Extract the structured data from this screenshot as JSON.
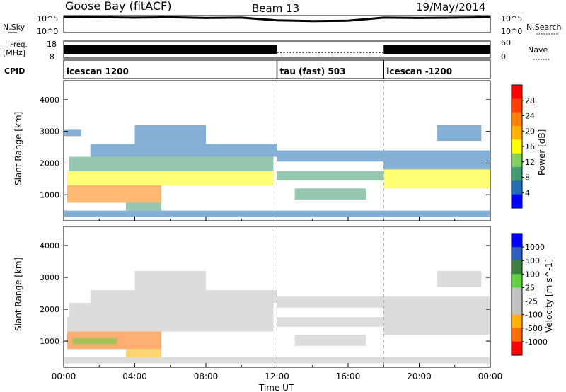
{
  "header": {
    "station": "Goose Bay (fitACF)",
    "beam": "Beam 13",
    "date": "19/May/2014"
  },
  "colors": {
    "axis": "#000000",
    "scatter_low": "#808080",
    "power_scale": [
      "#0000ff",
      "#1f6fb4",
      "#3f9a6e",
      "#7fcf5f",
      "#ffff00",
      "#ffb000",
      "#ff7f00",
      "#ff3f00",
      "#ff0000"
    ],
    "velocity_scale": [
      "#ff0000",
      "#ff6a00",
      "#ffb000",
      "#bfbfbf",
      "#bfbfbf",
      "#5fd03f",
      "#3f7f3f",
      "#2f5fbf",
      "#0000ff"
    ]
  },
  "chart_data": [
    {
      "type": "line",
      "panel": "noise",
      "left_labels": [
        "N.Sky"
      ],
      "right_labels": [
        "N.Search"
      ],
      "left_ticks": [
        "10^5",
        "10^0"
      ],
      "right_ticks": [
        "10^5",
        "10^0"
      ],
      "x": [
        "00:00",
        "02:00",
        "04:00",
        "06:00",
        "08:00",
        "10:00",
        "12:00",
        "14:00",
        "16:00",
        "18:00",
        "20:00",
        "22:00",
        "24:00"
      ],
      "series": [
        {
          "values": [
            4.6,
            4.5,
            4.4,
            4.5,
            4.3,
            4.4,
            3.6,
            3.4,
            3.5,
            4.4,
            4.3,
            4.4,
            4.5
          ]
        }
      ]
    },
    {
      "type": "bar",
      "panel": "frequency",
      "left_labels": [
        "Freq.",
        "[MHz]"
      ],
      "right_labels": [
        "Nave"
      ],
      "left_ticks": [
        "18",
        "8"
      ],
      "right_ticks": [
        "60",
        "0"
      ],
      "segments": [
        {
          "start": "00:00",
          "end": "12:00",
          "state": "filled"
        },
        {
          "start": "12:00",
          "end": "18:00",
          "state": "dotted"
        },
        {
          "start": "18:00",
          "end": "24:00",
          "state": "filled"
        }
      ]
    },
    {
      "type": "table",
      "panel": "cpid",
      "label": "CPID",
      "modes": [
        {
          "start": "00:00",
          "name": "icescan 1200"
        },
        {
          "start": "12:00",
          "name": "tau (fast) 503"
        },
        {
          "start": "18:00",
          "name": "icescan -1200"
        }
      ]
    },
    {
      "type": "heatmap",
      "panel": "power",
      "ylabel": "Slant Range [km]",
      "ylim": [
        180,
        4600
      ],
      "yticks": [
        1000,
        2000,
        3000,
        4000
      ],
      "colorbar_label": "Power [dB]",
      "colorbar_ticks": [
        "28",
        "24",
        "20",
        "16",
        "12",
        "8",
        "4"
      ],
      "bands": [
        {
          "t0": 0.2,
          "t1": 11.8,
          "r0": 1300,
          "r1": 1750,
          "level": 4
        },
        {
          "t0": 0.2,
          "t1": 5.5,
          "r0": 750,
          "r1": 1300,
          "level": 6
        },
        {
          "t0": 0.3,
          "t1": 11.8,
          "r0": 1750,
          "r1": 2200,
          "level": 2
        },
        {
          "t0": 1.5,
          "t1": 12,
          "r0": 2200,
          "r1": 2600,
          "level": 1
        },
        {
          "t0": 4,
          "t1": 8,
          "r0": 2600,
          "r1": 3200,
          "level": 1
        },
        {
          "t0": 0,
          "t1": 1,
          "r0": 2850,
          "r1": 3050,
          "level": 1
        },
        {
          "t0": 3.5,
          "t1": 5.5,
          "r0": 500,
          "r1": 750,
          "level": 2
        },
        {
          "t0": 12,
          "t1": 18,
          "r0": 2050,
          "r1": 2400,
          "level": 1
        },
        {
          "t0": 12,
          "t1": 18,
          "r0": 1450,
          "r1": 1750,
          "level": 2
        },
        {
          "t0": 13,
          "t1": 17,
          "r0": 850,
          "r1": 1200,
          "level": 2
        },
        {
          "t0": 18,
          "t1": 24,
          "r0": 1200,
          "r1": 1800,
          "level": 4
        },
        {
          "t0": 18,
          "t1": 24,
          "r0": 1800,
          "r1": 2400,
          "level": 1
        },
        {
          "t0": 21,
          "t1": 23.5,
          "r0": 2700,
          "r1": 3200,
          "level": 1
        },
        {
          "t0": 0,
          "t1": 24,
          "r0": 300,
          "r1": 500,
          "level": 1
        }
      ]
    },
    {
      "type": "heatmap",
      "panel": "velocity",
      "ylabel": "Slant Range [km]",
      "ylim": [
        180,
        4600
      ],
      "yticks": [
        1000,
        2000,
        3000,
        4000
      ],
      "xlabel": "Time UT",
      "xticks": [
        "00:00",
        "04:00",
        "08:00",
        "12:00",
        "16:00",
        "20:00",
        "00:00"
      ],
      "colorbar_label": "Velocity [m s^-1]",
      "colorbar_ticks": [
        "1000",
        "500",
        "100",
        "25",
        "-25",
        "-100",
        "-500",
        "-1000"
      ],
      "bands": [
        {
          "t0": 0.2,
          "t1": 11.8,
          "r0": 1300,
          "r1": 1750,
          "level": 4
        },
        {
          "t0": 0.2,
          "t1": 5.5,
          "r0": 750,
          "r1": 1300,
          "level": 1
        },
        {
          "t0": 0.3,
          "t1": 11.8,
          "r0": 1750,
          "r1": 2200,
          "level": 4
        },
        {
          "t0": 1.5,
          "t1": 12,
          "r0": 2200,
          "r1": 2600,
          "level": 4
        },
        {
          "t0": 4,
          "t1": 8,
          "r0": 2600,
          "r1": 3200,
          "level": 4
        },
        {
          "t0": 3.5,
          "t1": 5.5,
          "r0": 500,
          "r1": 750,
          "level": 2
        },
        {
          "t0": 0.5,
          "t1": 3,
          "r0": 900,
          "r1": 1100,
          "level": 5
        },
        {
          "t0": 12,
          "t1": 18,
          "r0": 2050,
          "r1": 2400,
          "level": 4
        },
        {
          "t0": 12,
          "t1": 18,
          "r0": 1450,
          "r1": 1750,
          "level": 4
        },
        {
          "t0": 13,
          "t1": 17,
          "r0": 850,
          "r1": 1200,
          "level": 4
        },
        {
          "t0": 18,
          "t1": 24,
          "r0": 1200,
          "r1": 1800,
          "level": 4
        },
        {
          "t0": 18,
          "t1": 24,
          "r0": 1800,
          "r1": 2400,
          "level": 4
        },
        {
          "t0": 21,
          "t1": 23.5,
          "r0": 2700,
          "r1": 3200,
          "level": 4
        },
        {
          "t0": 0,
          "t1": 24,
          "r0": 300,
          "r1": 500,
          "level": 4
        }
      ]
    }
  ]
}
